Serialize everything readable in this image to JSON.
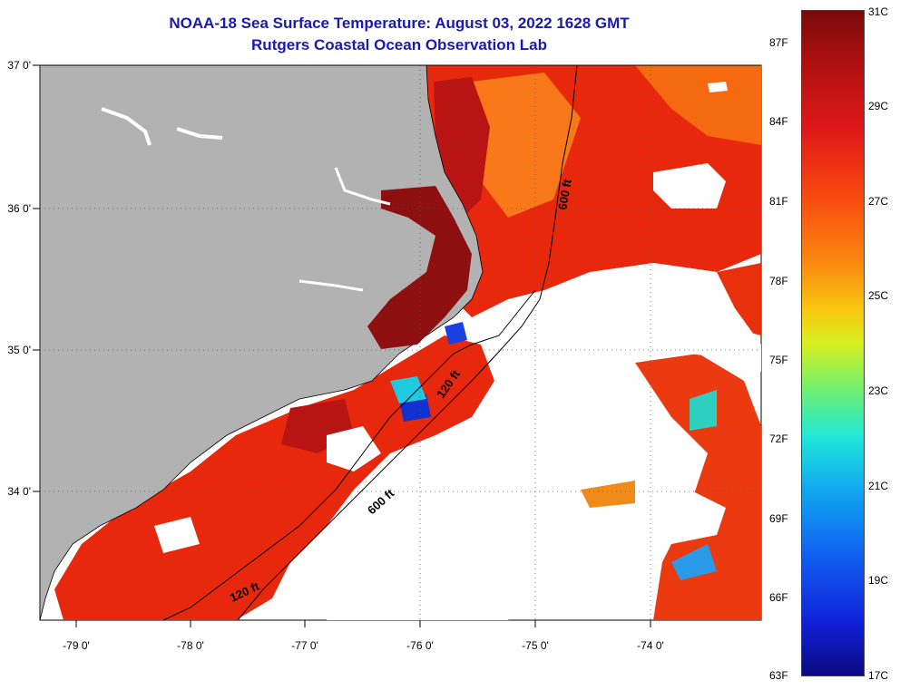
{
  "title": {
    "line1": "NOAA-18 Sea Surface Temperature:  August 03, 2022 1628 GMT",
    "line2": "Rutgers Coastal Ocean Observation Lab"
  },
  "axes": {
    "lon_labels": [
      "-79 0'",
      "-78 0'",
      "-77 0'",
      "-76 0'",
      "-75 0'",
      "-74 0'"
    ],
    "lat_labels": [
      "37 0'",
      "36 0'",
      "35 0'",
      "34 0'"
    ]
  },
  "contours": {
    "label_600_north": "600 ft",
    "label_120_mid": "120 ft",
    "label_600_south": "600 ft",
    "label_120_south": "120 ft"
  },
  "colorbar": {
    "fahrenheit": [
      "87F",
      "84F",
      "81F",
      "78F",
      "75F",
      "72F",
      "69F",
      "66F",
      "63F"
    ],
    "celsius": [
      "31C",
      "29C",
      "27C",
      "25C",
      "23C",
      "21C",
      "19C",
      "17C"
    ]
  },
  "colors": {
    "title": "#1a1ab0",
    "land": "#b2b2b2",
    "cloud": "#ffffff",
    "warm": "#e8200a",
    "hot": "#8e0f0f"
  }
}
